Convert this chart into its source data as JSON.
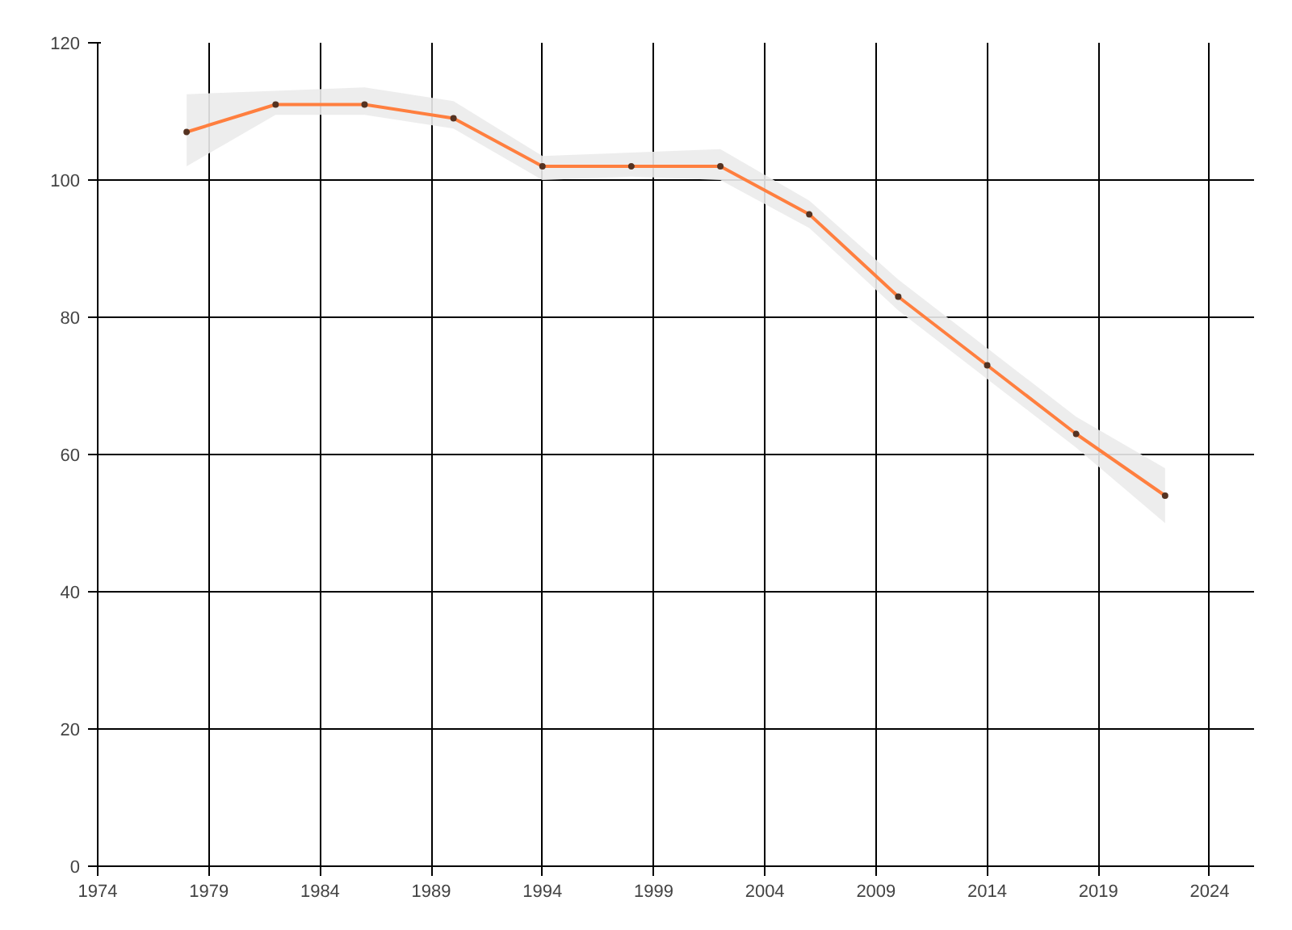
{
  "chart_data": {
    "type": "line",
    "x": [
      1978,
      1982,
      1986,
      1990,
      1994,
      1998,
      2002,
      2006,
      2010,
      2014,
      2018,
      2022
    ],
    "series": [
      {
        "color": "#ff7f3f",
        "values": [
          107,
          111,
          111,
          109,
          102,
          102,
          102,
          95,
          83,
          73,
          63,
          54
        ],
        "lower": [
          102,
          109.5,
          109.5,
          107.5,
          100,
          100.5,
          100,
          93,
          81,
          71,
          61,
          50
        ],
        "upper": [
          112.5,
          113,
          113.5,
          111.5,
          103.5,
          104,
          104.5,
          97,
          85.5,
          75.5,
          65.5,
          58
        ]
      }
    ],
    "xlim": [
      1974,
      2026
    ],
    "xticks": [
      1974,
      1979,
      1984,
      1989,
      1994,
      1999,
      2004,
      2009,
      2014,
      2019,
      2024
    ],
    "ylim": [
      0,
      120
    ],
    "yticks": [
      0,
      20,
      40,
      60,
      80,
      100,
      120
    ],
    "grid": true,
    "marker": "circle",
    "line_style": "solid"
  }
}
